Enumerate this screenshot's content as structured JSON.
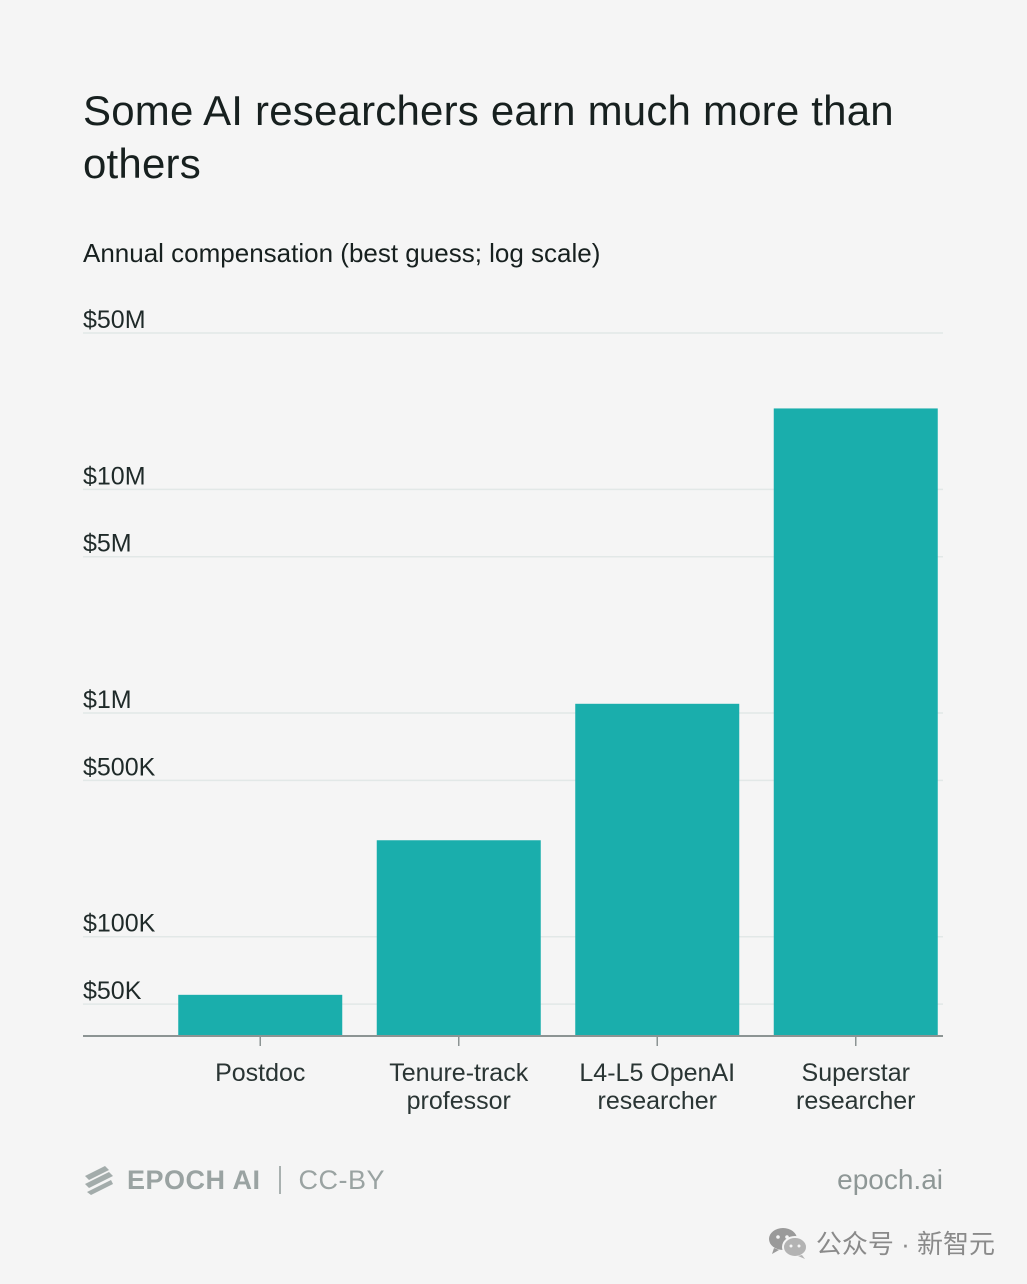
{
  "colors": {
    "bar": "#1aaeac",
    "grid": "#e2e8e7",
    "axis": "#8c9493",
    "background": "#f5f5f5"
  },
  "chart_data": {
    "type": "bar",
    "title": "Some AI researchers earn much more than others",
    "subtitle": "Annual compensation (best guess; log scale)",
    "y_scale": "log",
    "ylim": [
      36000,
      50000000
    ],
    "y_ticks": [
      {
        "value": 50000,
        "label": "$50K"
      },
      {
        "value": 100000,
        "label": "$100K"
      },
      {
        "value": 500000,
        "label": "$500K"
      },
      {
        "value": 1000000,
        "label": "$1M"
      },
      {
        "value": 5000000,
        "label": "$5M"
      },
      {
        "value": 10000000,
        "label": "$10M"
      },
      {
        "value": 50000000,
        "label": "$50M"
      }
    ],
    "categories": [
      [
        "Postdoc"
      ],
      [
        "Tenure-track",
        "professor"
      ],
      [
        "L4-L5 OpenAI",
        "researcher"
      ],
      [
        "Superstar",
        "researcher"
      ]
    ],
    "values": [
      55000,
      270000,
      1100000,
      23000000
    ],
    "grid": true,
    "legend": "none"
  },
  "footer": {
    "brand": "EPOCH AI",
    "license": "CC-BY",
    "site": "epoch.ai"
  },
  "watermark": {
    "text": "公众号 · 新智元",
    "icon": "wechat-icon"
  }
}
